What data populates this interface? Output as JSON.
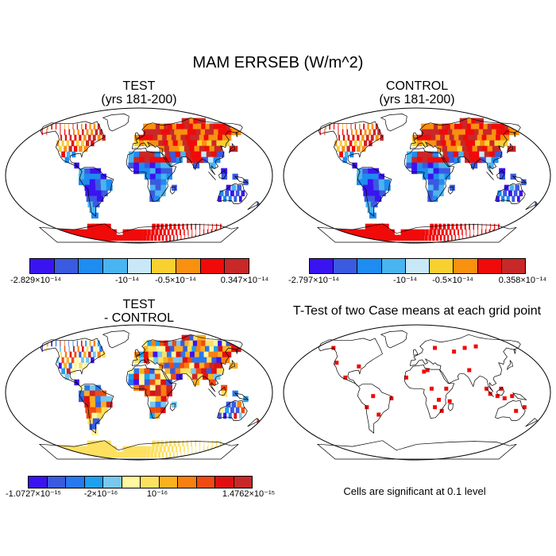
{
  "title": "MAM ERRSEB (W/m^2)",
  "panels": {
    "test": {
      "title1": "TEST",
      "title2": "(yrs 181-200)"
    },
    "control": {
      "title1": "CONTROL",
      "title2": "(yrs 181-200)"
    },
    "diff": {
      "title1": "TEST",
      "title2": "- CONTROL"
    },
    "ttest": {
      "title1": "T-Test of two Case means at each grid point",
      "note": "Cells are significant at 0.1 level"
    }
  },
  "colorbars": {
    "test": {
      "colors": [
        "#3a14f0",
        "#3a5ae0",
        "#1e8cf0",
        "#4ab4f0",
        "#c8e8f8",
        "#f8d030",
        "#f89010",
        "#f00a0a",
        "#c82828"
      ],
      "labels": [
        "-2.829×10⁻¹⁴",
        "-10⁻¹⁴",
        "-0.5×10⁻¹⁴",
        "0.347×10⁻¹⁴"
      ]
    },
    "control": {
      "colors": [
        "#3a14f0",
        "#3a5ae0",
        "#1e8cf0",
        "#4ab4f0",
        "#c8e8f8",
        "#f8d030",
        "#f89010",
        "#f00a0a",
        "#c82828"
      ],
      "labels": [
        "-2.797×10⁻¹⁴",
        "-10⁻¹⁴",
        "-0.5×10⁻¹⁴",
        "0.358×10⁻¹⁴"
      ]
    },
    "diff": {
      "colors": [
        "#3a14f0",
        "#3a5ae0",
        "#2878f0",
        "#1ea0f0",
        "#78c8f0",
        "#fff8a0",
        "#fee060",
        "#fbb020",
        "#f88010",
        "#f04a10",
        "#e01010",
        "#c82828"
      ],
      "labels": [
        "-1.0727×10⁻¹⁵",
        "-2×10⁻¹⁶",
        "10⁻¹⁶",
        "1.4762×10⁻¹⁵"
      ]
    }
  },
  "chart_data": [
    {
      "type": "heatmap",
      "title": "TEST (yrs 181-200)",
      "projection": "Robinson",
      "range": [
        -2.829e-14,
        3.47e-15
      ],
      "legend": "bottom"
    },
    {
      "type": "heatmap",
      "title": "CONTROL (yrs 181-200)",
      "projection": "Robinson",
      "range": [
        -2.797e-14,
        3.58e-15
      ],
      "legend": "bottom"
    },
    {
      "type": "heatmap",
      "title": "TEST - CONTROL",
      "projection": "Robinson",
      "range": [
        -1.0727e-15,
        1.4762e-15
      ],
      "legend": "bottom"
    },
    {
      "type": "heatmap",
      "title": "T-Test of two Case means at each grid point",
      "projection": "Robinson",
      "significance_level": 0.1
    }
  ]
}
